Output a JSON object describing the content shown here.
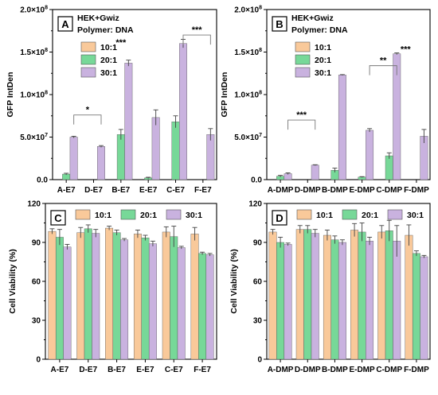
{
  "colors": {
    "10:1": "#f9c99a",
    "20:1": "#77d898",
    "30:1": "#c9b2df"
  },
  "chart_data": [
    {
      "id": "A",
      "type": "bar",
      "panel_label": "A",
      "info_lines": [
        "HEK+Gwiz",
        "Polymer: DNA"
      ],
      "legend_layout": "vertical",
      "legend_position": "top-left",
      "ylabel": "GFP IntDen",
      "ylim": [
        0,
        200000000
      ],
      "yticks": [
        {
          "value": 0,
          "label": "0.0"
        },
        {
          "value": 50000000,
          "mant": "5.0×10",
          "exp": "7"
        },
        {
          "value": 100000000,
          "mant": "1.0×10",
          "exp": "8"
        },
        {
          "value": 150000000,
          "mant": "1.5×10",
          "exp": "8"
        },
        {
          "value": 200000000,
          "mant": "2.0×10",
          "exp": "8"
        }
      ],
      "categories": [
        "A-E7",
        "D-E7",
        "B-E7",
        "E-E7",
        "C-E7",
        "F-E7"
      ],
      "series": [
        {
          "name": "10:1",
          "values": [
            0,
            0,
            0,
            0,
            0,
            0
          ],
          "errors": [
            0,
            0,
            0,
            0,
            0,
            0
          ]
        },
        {
          "name": "20:1",
          "values": [
            6500000,
            0,
            53000000,
            2000000,
            68000000,
            0
          ],
          "errors": [
            1000000,
            0,
            6000000,
            800000,
            7000000,
            0
          ]
        },
        {
          "name": "30:1",
          "values": [
            50000000,
            39000000,
            137000000,
            73000000,
            160000000,
            53000000
          ],
          "errors": [
            1000000,
            1000000,
            3500000,
            9000000,
            5000000,
            7000000
          ]
        }
      ],
      "brackets": [
        {
          "from": 0,
          "to": 1,
          "label": "*",
          "y": 76000000
        },
        {
          "from": 4,
          "to": 5,
          "label": "***",
          "y": 170000000
        }
      ],
      "stars": [
        {
          "at": 2.5,
          "label": "***",
          "y": 158000000
        }
      ]
    },
    {
      "id": "B",
      "type": "bar",
      "panel_label": "B",
      "info_lines": [
        "HEK+Gwiz",
        "Polymer: DNA"
      ],
      "legend_layout": "vertical",
      "legend_position": "top-left",
      "ylabel": "GFP IntDen",
      "ylim": [
        0,
        200000000
      ],
      "yticks": [
        {
          "value": 0,
          "label": "0.0"
        },
        {
          "value": 50000000,
          "mant": "5.0×10",
          "exp": "7"
        },
        {
          "value": 100000000,
          "mant": "1.0×10",
          "exp": "8"
        },
        {
          "value": 150000000,
          "mant": "1.5×10",
          "exp": "8"
        },
        {
          "value": 200000000,
          "mant": "2.0×10",
          "exp": "8"
        }
      ],
      "categories": [
        "A-DMP",
        "D-DMP",
        "B-DMP",
        "E-DMP",
        "C-DMP",
        "F-DMP"
      ],
      "series": [
        {
          "name": "10:1",
          "values": [
            0,
            0,
            0,
            0,
            0,
            0
          ],
          "errors": [
            0,
            0,
            0,
            0,
            0,
            0
          ]
        },
        {
          "name": "20:1",
          "values": [
            4000000,
            0,
            11000000,
            3000000,
            28000000,
            0
          ],
          "errors": [
            1000000,
            0,
            2500000,
            500000,
            3500000,
            0
          ]
        },
        {
          "name": "30:1",
          "values": [
            7000000,
            17000000,
            123000000,
            58000000,
            148000000,
            51000000
          ],
          "errors": [
            1000000,
            500000,
            500000,
            2000000,
            1000000,
            8000000
          ]
        }
      ],
      "brackets": [
        {
          "from": 0,
          "to": 1,
          "label": "***",
          "y": 70000000
        },
        {
          "from": 3,
          "to": 4,
          "label": "**",
          "y": 134000000
        }
      ],
      "stars": [
        {
          "at": 5.1,
          "label": "***",
          "y": 150000000
        }
      ]
    },
    {
      "id": "C",
      "type": "bar",
      "panel_label": "C",
      "info_lines": [],
      "legend_layout": "horizontal",
      "legend_position": "top",
      "ylabel": "Cell Viability (%)",
      "ylim": [
        0,
        120
      ],
      "yticks": [
        {
          "value": 0,
          "label": "0"
        },
        {
          "value": 30,
          "label": "30"
        },
        {
          "value": 60,
          "label": "60"
        },
        {
          "value": 90,
          "label": "90"
        },
        {
          "value": 120,
          "label": "120"
        }
      ],
      "categories": [
        "A-E7",
        "D-E7",
        "B-E7",
        "E-E7",
        "C-E7",
        "F-E7"
      ],
      "series": [
        {
          "name": "10:1",
          "values": [
            98.5,
            97.5,
            101,
            96.5,
            98,
            96.5
          ],
          "errors": [
            2,
            4,
            1.5,
            3,
            4,
            5
          ]
        },
        {
          "name": "20:1",
          "values": [
            94,
            100.5,
            97.5,
            93.5,
            94.5,
            81.5
          ],
          "errors": [
            6,
            3,
            2,
            2,
            8,
            1
          ]
        },
        {
          "name": "30:1",
          "values": [
            86.5,
            97,
            92,
            89,
            86,
            80.5
          ],
          "errors": [
            2,
            3,
            1,
            2,
            1,
            1
          ]
        }
      ],
      "brackets": [],
      "stars": []
    },
    {
      "id": "D",
      "type": "bar",
      "panel_label": "D",
      "info_lines": [],
      "legend_layout": "horizontal",
      "legend_position": "top",
      "ylabel": "Cell Viability (%)",
      "ylim": [
        0,
        120
      ],
      "yticks": [
        {
          "value": 0,
          "label": "0"
        },
        {
          "value": 30,
          "label": "30"
        },
        {
          "value": 60,
          "label": "60"
        },
        {
          "value": 90,
          "label": "90"
        },
        {
          "value": 120,
          "label": "120"
        }
      ],
      "categories": [
        "A-DMP",
        "D-DMP",
        "B-DMP",
        "E-DMP",
        "C-DMP",
        "F-DMP"
      ],
      "series": [
        {
          "name": "10:1",
          "values": [
            98,
            100,
            95.5,
            99.5,
            98,
            95.5
          ],
          "errors": [
            2,
            3,
            4,
            5,
            5,
            8
          ]
        },
        {
          "name": "20:1",
          "values": [
            90,
            100,
            92,
            98,
            99,
            81.5
          ],
          "errors": [
            4,
            3,
            3,
            7,
            8,
            2
          ]
        },
        {
          "name": "30:1",
          "values": [
            88.5,
            97,
            90,
            91,
            91,
            79
          ],
          "errors": [
            1,
            3,
            2,
            3,
            12,
            1
          ]
        }
      ],
      "brackets": [],
      "stars": []
    }
  ]
}
